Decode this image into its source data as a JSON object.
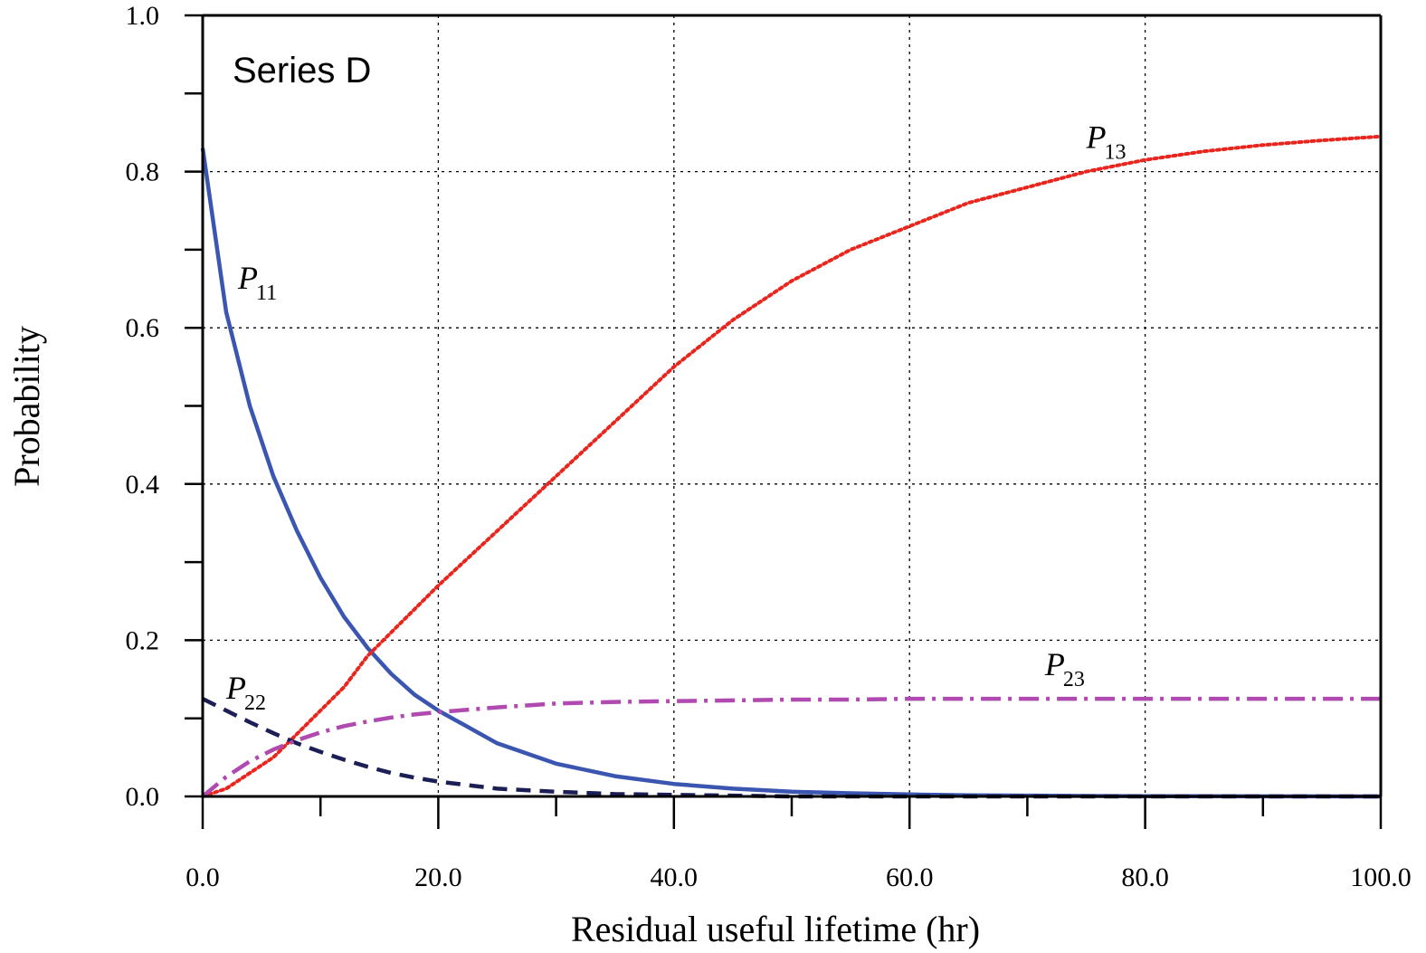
{
  "chart_data": {
    "type": "line",
    "title": "Series D",
    "xlabel": "Residual useful lifetime (hr)",
    "ylabel": "Probability",
    "xlim": [
      0,
      100
    ],
    "ylim": [
      0,
      1.0
    ],
    "grid": true,
    "x_ticks": [
      "0.0",
      "20.0",
      "40.0",
      "60.0",
      "80.0",
      "100.0"
    ],
    "y_ticks": [
      "0.0",
      "0.2",
      "0.4",
      "0.6",
      "0.8",
      "1.0"
    ],
    "x": [
      0,
      2,
      4,
      6,
      8,
      10,
      12,
      14,
      16,
      18,
      20,
      25,
      30,
      35,
      40,
      45,
      50,
      55,
      60,
      65,
      70,
      75,
      80,
      85,
      90,
      95,
      100
    ],
    "series": [
      {
        "name_main": "P",
        "name_sub": "11",
        "color": "#3b56b0",
        "style": "solid",
        "values": [
          0.83,
          0.62,
          0.5,
          0.41,
          0.34,
          0.28,
          0.23,
          0.19,
          0.157,
          0.13,
          0.11,
          0.068,
          0.042,
          0.026,
          0.016,
          0.01,
          0.006,
          0.004,
          0.0025,
          0.0015,
          0.001,
          0.0006,
          0.0004,
          0.0002,
          0.0001,
          0.0001,
          0.0
        ]
      },
      {
        "name_main": "P",
        "name_sub": "13",
        "color": "#e8261e",
        "style": "dotted",
        "values": [
          0.0,
          0.01,
          0.03,
          0.05,
          0.08,
          0.11,
          0.14,
          0.18,
          0.21,
          0.24,
          0.27,
          0.34,
          0.41,
          0.48,
          0.55,
          0.61,
          0.66,
          0.7,
          0.73,
          0.76,
          0.78,
          0.8,
          0.815,
          0.826,
          0.834,
          0.84,
          0.845
        ]
      },
      {
        "name_main": "P",
        "name_sub": "22",
        "color": "#1c1f55",
        "style": "dashed",
        "values": [
          0.125,
          0.11,
          0.095,
          0.081,
          0.068,
          0.057,
          0.047,
          0.038,
          0.03,
          0.024,
          0.019,
          0.01,
          0.006,
          0.003,
          0.002,
          0.001,
          0.0,
          0.0,
          0.0,
          0.0,
          0.0,
          0.0,
          0.0,
          0.0,
          0.0,
          0.0,
          0.0
        ]
      },
      {
        "name_main": "P",
        "name_sub": "23",
        "color": "#b04ab0",
        "style": "dashdot",
        "values": [
          0.0,
          0.025,
          0.045,
          0.06,
          0.072,
          0.082,
          0.09,
          0.096,
          0.101,
          0.105,
          0.108,
          0.114,
          0.119,
          0.121,
          0.122,
          0.123,
          0.124,
          0.124,
          0.125,
          0.125,
          0.125,
          0.125,
          0.125,
          0.125,
          0.125,
          0.125,
          0.125
        ]
      }
    ],
    "annotations": [
      {
        "series_index": 0,
        "x": 3.0,
        "y": 0.65
      },
      {
        "series_index": 1,
        "x": 75.0,
        "y": 0.83
      },
      {
        "series_index": 2,
        "x": 2.0,
        "y": 0.125
      },
      {
        "series_index": 3,
        "x": 71.5,
        "y": 0.155
      }
    ]
  }
}
